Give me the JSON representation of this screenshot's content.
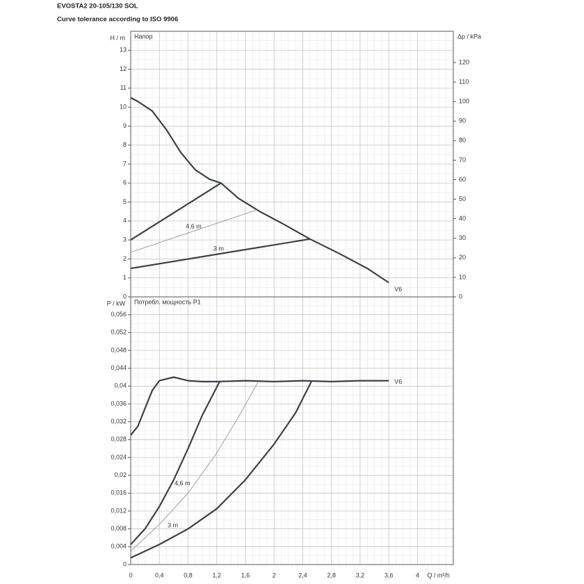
{
  "title": "EVOSTA2 20-105/130 SOL",
  "subtitle": "Curve tolerance according to ISO 9906",
  "chart_data": [
    {
      "type": "line",
      "annotation": "Напор",
      "ylabel": "H / m",
      "y2label": "Δp / kPa",
      "xlim": [
        0,
        4.5
      ],
      "xticks": [
        0,
        {
          "value": 0.4,
          "label": "0,4"
        },
        {
          "value": 0.8,
          "label": "0,8"
        },
        {
          "value": 1.2,
          "label": "1,2"
        },
        {
          "value": 1.6,
          "label": "1,6"
        },
        2,
        {
          "value": 2.4,
          "label": "2,4"
        },
        {
          "value": 2.8,
          "label": "2,8"
        },
        {
          "value": 3.2,
          "label": "3,2"
        },
        {
          "value": 3.6,
          "label": "3,6"
        },
        4
      ],
      "ylim": [
        0,
        14
      ],
      "yticks": [
        0,
        1,
        2,
        3,
        4,
        5,
        6,
        7,
        8,
        9,
        10,
        11,
        12,
        13
      ],
      "y2lim": [
        0,
        136
      ],
      "y2ticks": [
        0,
        10,
        20,
        30,
        40,
        50,
        60,
        70,
        80,
        90,
        100,
        110,
        120
      ],
      "grid": true,
      "series": [
        {
          "name": "V6",
          "color": "#3b4047",
          "linewidth": 2.2,
          "x": [
            0,
            0.1,
            0.3,
            0.5,
            0.7,
            0.9,
            1.1,
            1.26,
            1.5,
            1.8,
            2.1,
            2.5,
            2.9,
            3.3,
            3.6
          ],
          "values": [
            10.5,
            10.3,
            9.8,
            8.8,
            7.6,
            6.7,
            6.2,
            6.0,
            5.2,
            4.5,
            3.9,
            3.05,
            2.3,
            1.5,
            0.75
          ]
        },
        {
          "color": "#3b4047",
          "linewidth": 2.2,
          "x": [
            0,
            1.26
          ],
          "values": [
            3,
            6
          ]
        },
        {
          "name": "4,6 m",
          "color": "#8a8a8a",
          "linewidth": 0.8,
          "x": [
            0,
            1.77
          ],
          "values": [
            2.35,
            4.6
          ]
        },
        {
          "name": "3 m",
          "color": "#3b4047",
          "linewidth": 2.2,
          "x": [
            0,
            2.5
          ],
          "values": [
            1.5,
            3.05
          ]
        }
      ]
    },
    {
      "type": "line",
      "annotation": "Потребл. мощность P1",
      "ylabel": "P / kW",
      "xlabel": "Q / m³/h",
      "xlim": [
        0,
        4.5
      ],
      "xticks": [
        0,
        {
          "value": 0.4,
          "label": "0,4"
        },
        {
          "value": 0.8,
          "label": "0,8"
        },
        {
          "value": 1.2,
          "label": "1,2"
        },
        {
          "value": 1.6,
          "label": "1,6"
        },
        2,
        {
          "value": 2.4,
          "label": "2,4"
        },
        {
          "value": 2.8,
          "label": "2,8"
        },
        {
          "value": 3.2,
          "label": "3,2"
        },
        {
          "value": 3.6,
          "label": "3,6"
        },
        4
      ],
      "ylim": [
        0,
        0.06
      ],
      "yticks": [
        0,
        {
          "value": 0.004,
          "label": "0,004"
        },
        {
          "value": 0.008,
          "label": "0,008"
        },
        {
          "value": 0.012,
          "label": "0,012"
        },
        {
          "value": 0.016,
          "label": "0,016"
        },
        {
          "value": 0.02,
          "label": "0,02"
        },
        {
          "value": 0.024,
          "label": "0,024"
        },
        {
          "value": 0.028,
          "label": "0,028"
        },
        {
          "value": 0.032,
          "label": "0,032"
        },
        {
          "value": 0.036,
          "label": "0,036"
        },
        {
          "value": 0.04,
          "label": "0,04"
        },
        {
          "value": 0.044,
          "label": "0,044"
        },
        {
          "value": 0.048,
          "label": "0,048"
        },
        {
          "value": 0.052,
          "label": "0,052"
        },
        {
          "value": 0.056,
          "label": "0,056"
        }
      ],
      "grid": true,
      "series": [
        {
          "name": "V6",
          "color": "#3b4047",
          "linewidth": 2.2,
          "x": [
            0,
            0.1,
            0.2,
            0.3,
            0.4,
            0.6,
            0.8,
            1.0,
            1.2,
            1.6,
            2.0,
            2.4,
            2.8,
            3.2,
            3.6
          ],
          "values": [
            0.029,
            0.031,
            0.035,
            0.039,
            0.0412,
            0.042,
            0.0412,
            0.041,
            0.041,
            0.0412,
            0.041,
            0.0412,
            0.041,
            0.0412,
            0.0412
          ]
        },
        {
          "color": "#3b4047",
          "linewidth": 2.2,
          "x": [
            0,
            0.2,
            0.4,
            0.6,
            0.8,
            1.0,
            1.24
          ],
          "values": [
            0.0045,
            0.008,
            0.013,
            0.019,
            0.026,
            0.0335,
            0.041
          ]
        },
        {
          "name": "4,6 m",
          "color": "#8a8a8a",
          "linewidth": 0.8,
          "x": [
            0,
            0.4,
            0.8,
            1.2,
            1.5,
            1.78
          ],
          "values": [
            0.003,
            0.009,
            0.016,
            0.025,
            0.033,
            0.041
          ]
        },
        {
          "name": "3 m",
          "color": "#3b4047",
          "linewidth": 2.2,
          "x": [
            0,
            0.4,
            0.8,
            1.2,
            1.6,
            2.0,
            2.3,
            2.52
          ],
          "values": [
            0.0015,
            0.0045,
            0.008,
            0.0125,
            0.019,
            0.027,
            0.034,
            0.041
          ]
        }
      ]
    }
  ]
}
